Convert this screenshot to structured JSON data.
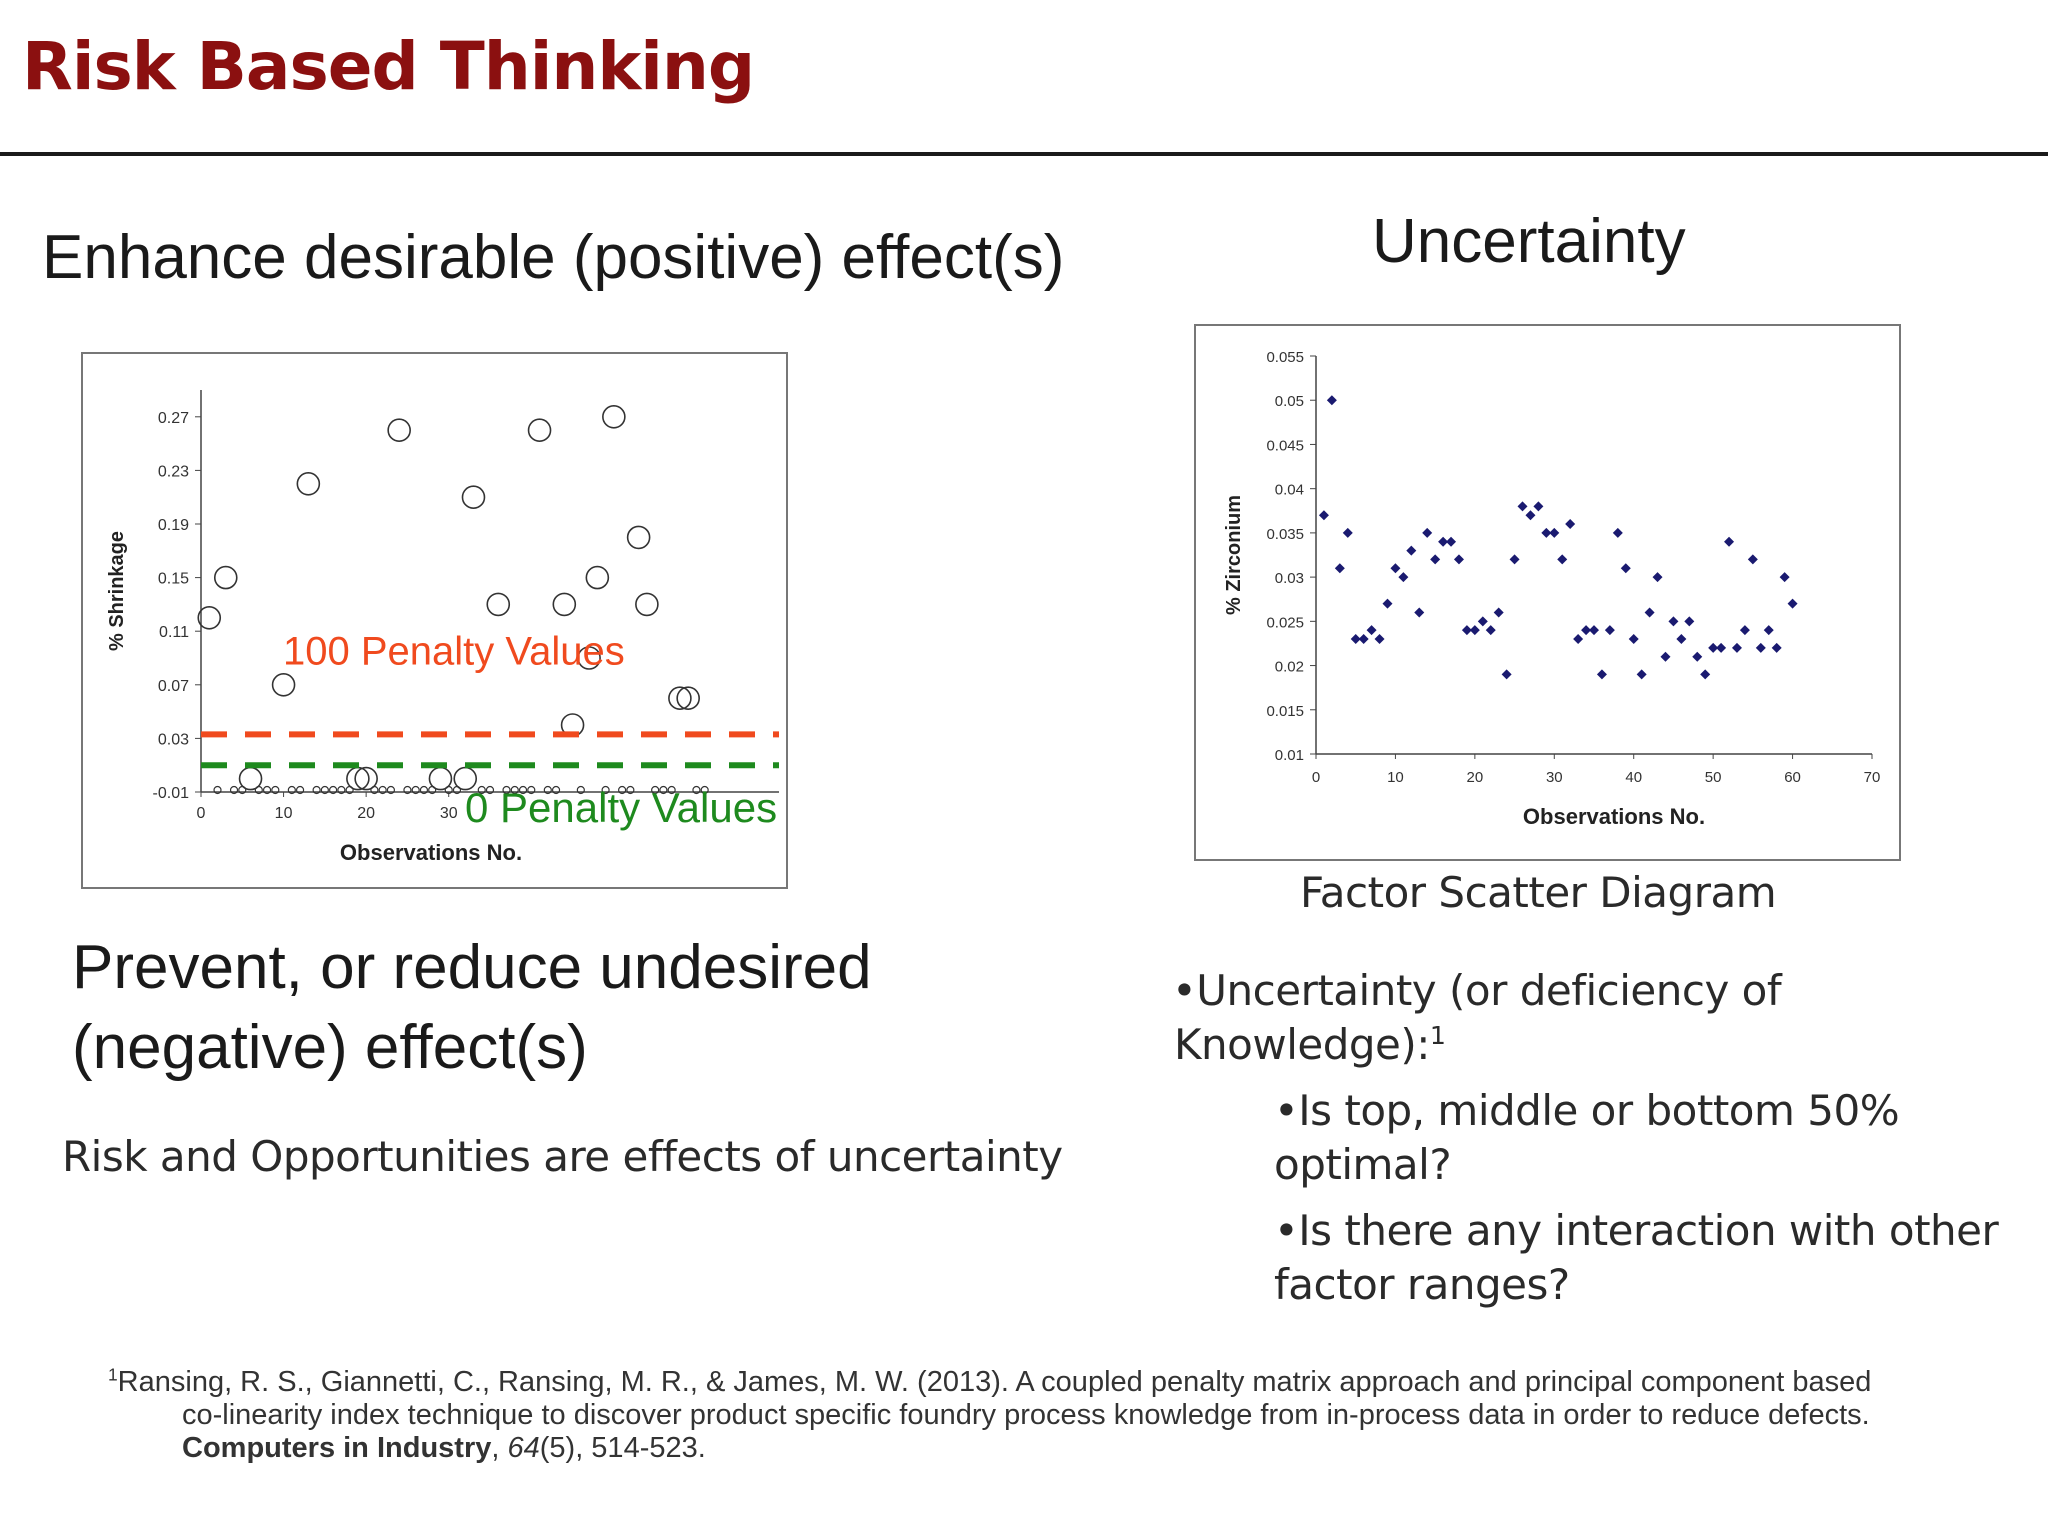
{
  "slide": {
    "title": "Risk Based Thinking",
    "left_heading": "Enhance desirable (positive) effect(s)",
    "right_heading": "Uncertainty",
    "prevent_line1": "Prevent, or reduce undesired",
    "prevent_line2": "(negative) effect(s)",
    "risk_statement": "Risk and Opportunities are effects of uncertainty",
    "scatter_caption": "Factor Scatter Diagram",
    "bullet_main_line1": "•Uncertainty (or deficiency of",
    "bullet_main_line2": "Knowledge):",
    "bullet_main_sup": "1",
    "bullet_sub1_line1": "•Is top, middle or bottom 50%",
    "bullet_sub1_line2": "optimal?",
    "bullet_sub2_line1": "•Is there any interaction with other",
    "bullet_sub2_line2": "factor ranges?"
  },
  "footnote": {
    "sup": "1",
    "authors": "Ransing, R. S., Giannetti, C., Ransing, M. R., & James, M. W. (2013). A coupled penalty matrix approach and principal component based",
    "line2": "co-linearity index technique to discover product specific foundry process knowledge  from in-process data in order to reduce defects.",
    "journal": "Computers in Industry",
    "sep": ", ",
    "volume": "64",
    "rest": "(5), 514-523."
  },
  "chart_data": [
    {
      "type": "scatter",
      "title": "",
      "xlabel": "Observations No.",
      "ylabel": "% Shrinkage",
      "xlim": [
        0,
        70
      ],
      "ylim": [
        -0.01,
        0.29
      ],
      "x_ticks": [
        "0",
        "10",
        "20",
        "30"
      ],
      "y_ticks": [
        "-0.01",
        "0.03",
        "0.07",
        "0.11",
        "0.15",
        "0.19",
        "0.23",
        "0.27"
      ],
      "marker": "open-circle",
      "series": [
        {
          "values": [
            [
              1,
              0.12
            ],
            [
              3,
              0.15
            ],
            [
              6,
              0.0
            ],
            [
              10,
              0.07
            ],
            [
              13,
              0.22
            ],
            [
              19,
              0.0
            ],
            [
              20,
              0.0
            ],
            [
              24,
              0.26
            ],
            [
              29,
              0.0
            ],
            [
              32,
              0.0
            ],
            [
              33,
              0.21
            ],
            [
              36,
              0.13
            ],
            [
              41,
              0.26
            ],
            [
              44,
              0.13
            ],
            [
              45,
              0.04
            ],
            [
              47,
              0.09
            ],
            [
              48,
              0.15
            ],
            [
              50,
              0.27
            ],
            [
              53,
              0.18
            ],
            [
              54,
              0.13
            ],
            [
              58,
              0.06
            ],
            [
              59,
              0.06
            ]
          ]
        },
        {
          "values": [
            [
              2,
              -0.01
            ],
            [
              4,
              -0.01
            ],
            [
              5,
              -0.01
            ],
            [
              7,
              -0.01
            ],
            [
              8,
              -0.01
            ],
            [
              9,
              -0.01
            ],
            [
              11,
              -0.01
            ],
            [
              12,
              -0.01
            ],
            [
              14,
              -0.01
            ],
            [
              15,
              -0.01
            ],
            [
              16,
              -0.01
            ],
            [
              17,
              -0.01
            ],
            [
              18,
              -0.01
            ],
            [
              21,
              -0.01
            ],
            [
              22,
              -0.01
            ],
            [
              23,
              -0.01
            ],
            [
              25,
              -0.01
            ],
            [
              26,
              -0.01
            ],
            [
              27,
              -0.01
            ],
            [
              28,
              -0.01
            ],
            [
              30,
              -0.01
            ],
            [
              31,
              -0.01
            ],
            [
              34,
              -0.01
            ],
            [
              35,
              -0.01
            ],
            [
              37,
              -0.01
            ],
            [
              38,
              -0.01
            ],
            [
              39,
              -0.01
            ],
            [
              40,
              -0.01
            ],
            [
              42,
              -0.01
            ],
            [
              43,
              -0.01
            ],
            [
              46,
              -0.01
            ],
            [
              49,
              -0.01
            ],
            [
              51,
              -0.01
            ],
            [
              52,
              -0.01
            ],
            [
              55,
              -0.01
            ],
            [
              56,
              -0.01
            ],
            [
              57,
              -0.01
            ],
            [
              60,
              -0.01
            ],
            [
              61,
              -0.01
            ]
          ]
        }
      ],
      "thresholds": [
        {
          "label": "100 Penalty Values",
          "y": 0.033,
          "color": "#f04a1e",
          "style": "dashed"
        },
        {
          "label": "0 Penalty Values",
          "y": 0.01,
          "color": "#1e8a1e",
          "style": "dashed"
        }
      ]
    },
    {
      "type": "scatter",
      "title": "",
      "xlabel": "Observations No.",
      "ylabel": "% Zirconium",
      "xlim": [
        0,
        70
      ],
      "ylim": [
        0.01,
        0.055
      ],
      "x_ticks": [
        "0",
        "10",
        "20",
        "30",
        "40",
        "50",
        "60",
        "70"
      ],
      "y_ticks": [
        "0.01",
        "0.015",
        "0.02",
        "0.025",
        "0.03",
        "0.035",
        "0.04",
        "0.045",
        "0.05",
        "0.055"
      ],
      "marker": "filled-diamond",
      "color": "#1a1a70",
      "series": [
        {
          "values": [
            [
              1,
              0.037
            ],
            [
              2,
              0.05
            ],
            [
              3,
              0.031
            ],
            [
              4,
              0.035
            ],
            [
              5,
              0.023
            ],
            [
              6,
              0.023
            ],
            [
              7,
              0.024
            ],
            [
              8,
              0.023
            ],
            [
              9,
              0.027
            ],
            [
              10,
              0.031
            ],
            [
              11,
              0.03
            ],
            [
              12,
              0.033
            ],
            [
              13,
              0.026
            ],
            [
              14,
              0.035
            ],
            [
              15,
              0.032
            ],
            [
              16,
              0.034
            ],
            [
              17,
              0.034
            ],
            [
              18,
              0.032
            ],
            [
              19,
              0.024
            ],
            [
              20,
              0.024
            ],
            [
              21,
              0.025
            ],
            [
              22,
              0.024
            ],
            [
              23,
              0.026
            ],
            [
              24,
              0.019
            ],
            [
              25,
              0.032
            ],
            [
              26,
              0.038
            ],
            [
              27,
              0.037
            ],
            [
              28,
              0.038
            ],
            [
              29,
              0.035
            ],
            [
              30,
              0.035
            ],
            [
              31,
              0.032
            ],
            [
              32,
              0.036
            ],
            [
              33,
              0.023
            ],
            [
              34,
              0.024
            ],
            [
              35,
              0.024
            ],
            [
              36,
              0.019
            ],
            [
              37,
              0.024
            ],
            [
              38,
              0.035
            ],
            [
              39,
              0.031
            ],
            [
              40,
              0.023
            ],
            [
              41,
              0.019
            ],
            [
              42,
              0.026
            ],
            [
              43,
              0.03
            ],
            [
              44,
              0.021
            ],
            [
              45,
              0.025
            ],
            [
              46,
              0.023
            ],
            [
              47,
              0.025
            ],
            [
              48,
              0.021
            ],
            [
              49,
              0.019
            ],
            [
              50,
              0.022
            ],
            [
              51,
              0.022
            ],
            [
              52,
              0.034
            ],
            [
              53,
              0.022
            ],
            [
              54,
              0.024
            ],
            [
              55,
              0.032
            ],
            [
              56,
              0.022
            ],
            [
              57,
              0.024
            ],
            [
              58,
              0.022
            ],
            [
              59,
              0.03
            ],
            [
              60,
              0.027
            ]
          ]
        }
      ]
    }
  ]
}
